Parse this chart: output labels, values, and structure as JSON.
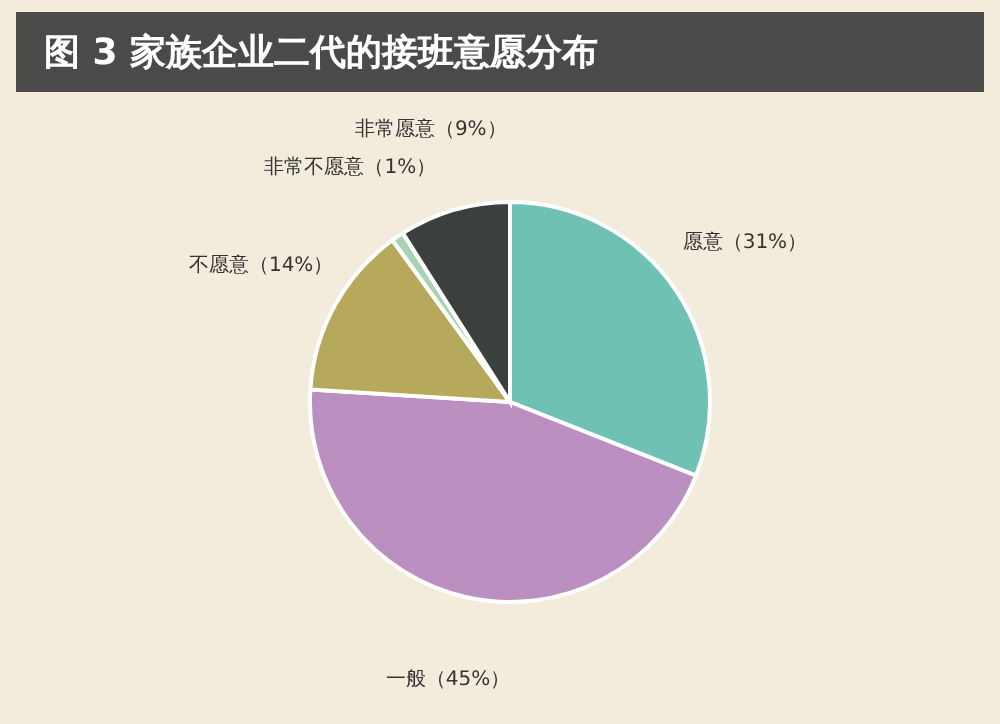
{
  "chart_data": {
    "type": "pie",
    "title": "图 3 家族企业二代的接班意愿分布",
    "categories": [
      "愿意",
      "一般",
      "不愿意",
      "非常不愿意",
      "非常愿意"
    ],
    "values": [
      31,
      45,
      14,
      1,
      9
    ],
    "colors": [
      "#6fc1b3",
      "#bb8fbf",
      "#b7a95c",
      "#a9d3b5",
      "#3b403c"
    ],
    "value_labels": [
      "（31%）",
      "（45%）",
      "（14%）",
      "（1%）",
      "（9%）"
    ]
  }
}
